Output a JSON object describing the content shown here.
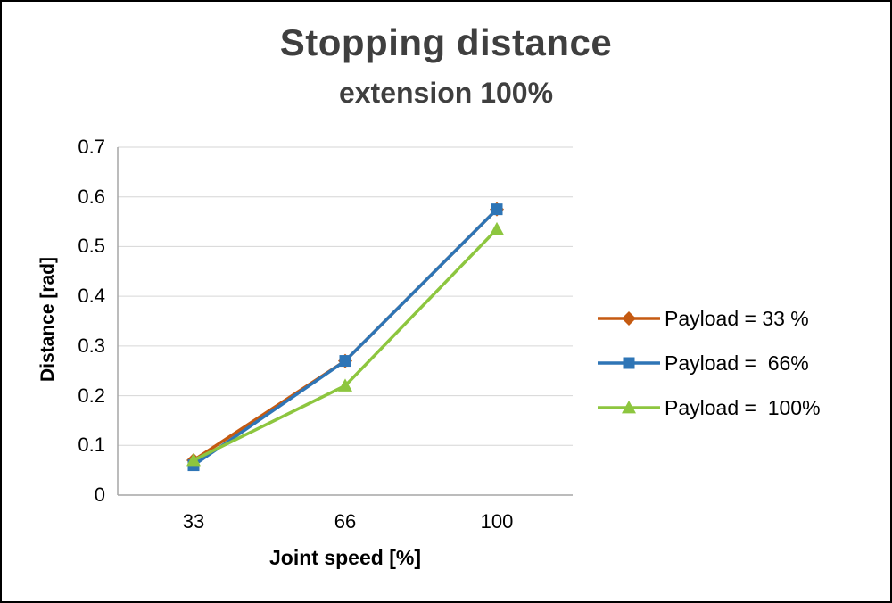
{
  "title": "Stopping distance",
  "subtitle": "extension 100%",
  "chart_data": {
    "type": "line",
    "categories": [
      "33",
      "66",
      "100"
    ],
    "series": [
      {
        "name": "Payload = 33 %",
        "color": "#c55a11",
        "marker": "diamond",
        "values": [
          0.07,
          0.27,
          0.575
        ]
      },
      {
        "name": "Payload =  66%",
        "color": "#2e75b6",
        "marker": "square",
        "values": [
          0.06,
          0.27,
          0.575
        ]
      },
      {
        "name": "Payload =  100%",
        "color": "#8dc63f",
        "marker": "triangle",
        "values": [
          0.07,
          0.22,
          0.535
        ]
      }
    ],
    "xlabel": "Joint speed [%]",
    "ylabel": "Distance [rad]",
    "ylim": [
      0,
      0.7
    ],
    "ytick_step": 0.1,
    "yticks": [
      "0.7",
      "0.6",
      "0.5",
      "0.4",
      "0.3",
      "0.2",
      "0.1",
      "0"
    ],
    "grid": true,
    "grid_color": "#d6d6d6",
    "axis_color": "#a6a6a6",
    "legend_position": "right"
  }
}
